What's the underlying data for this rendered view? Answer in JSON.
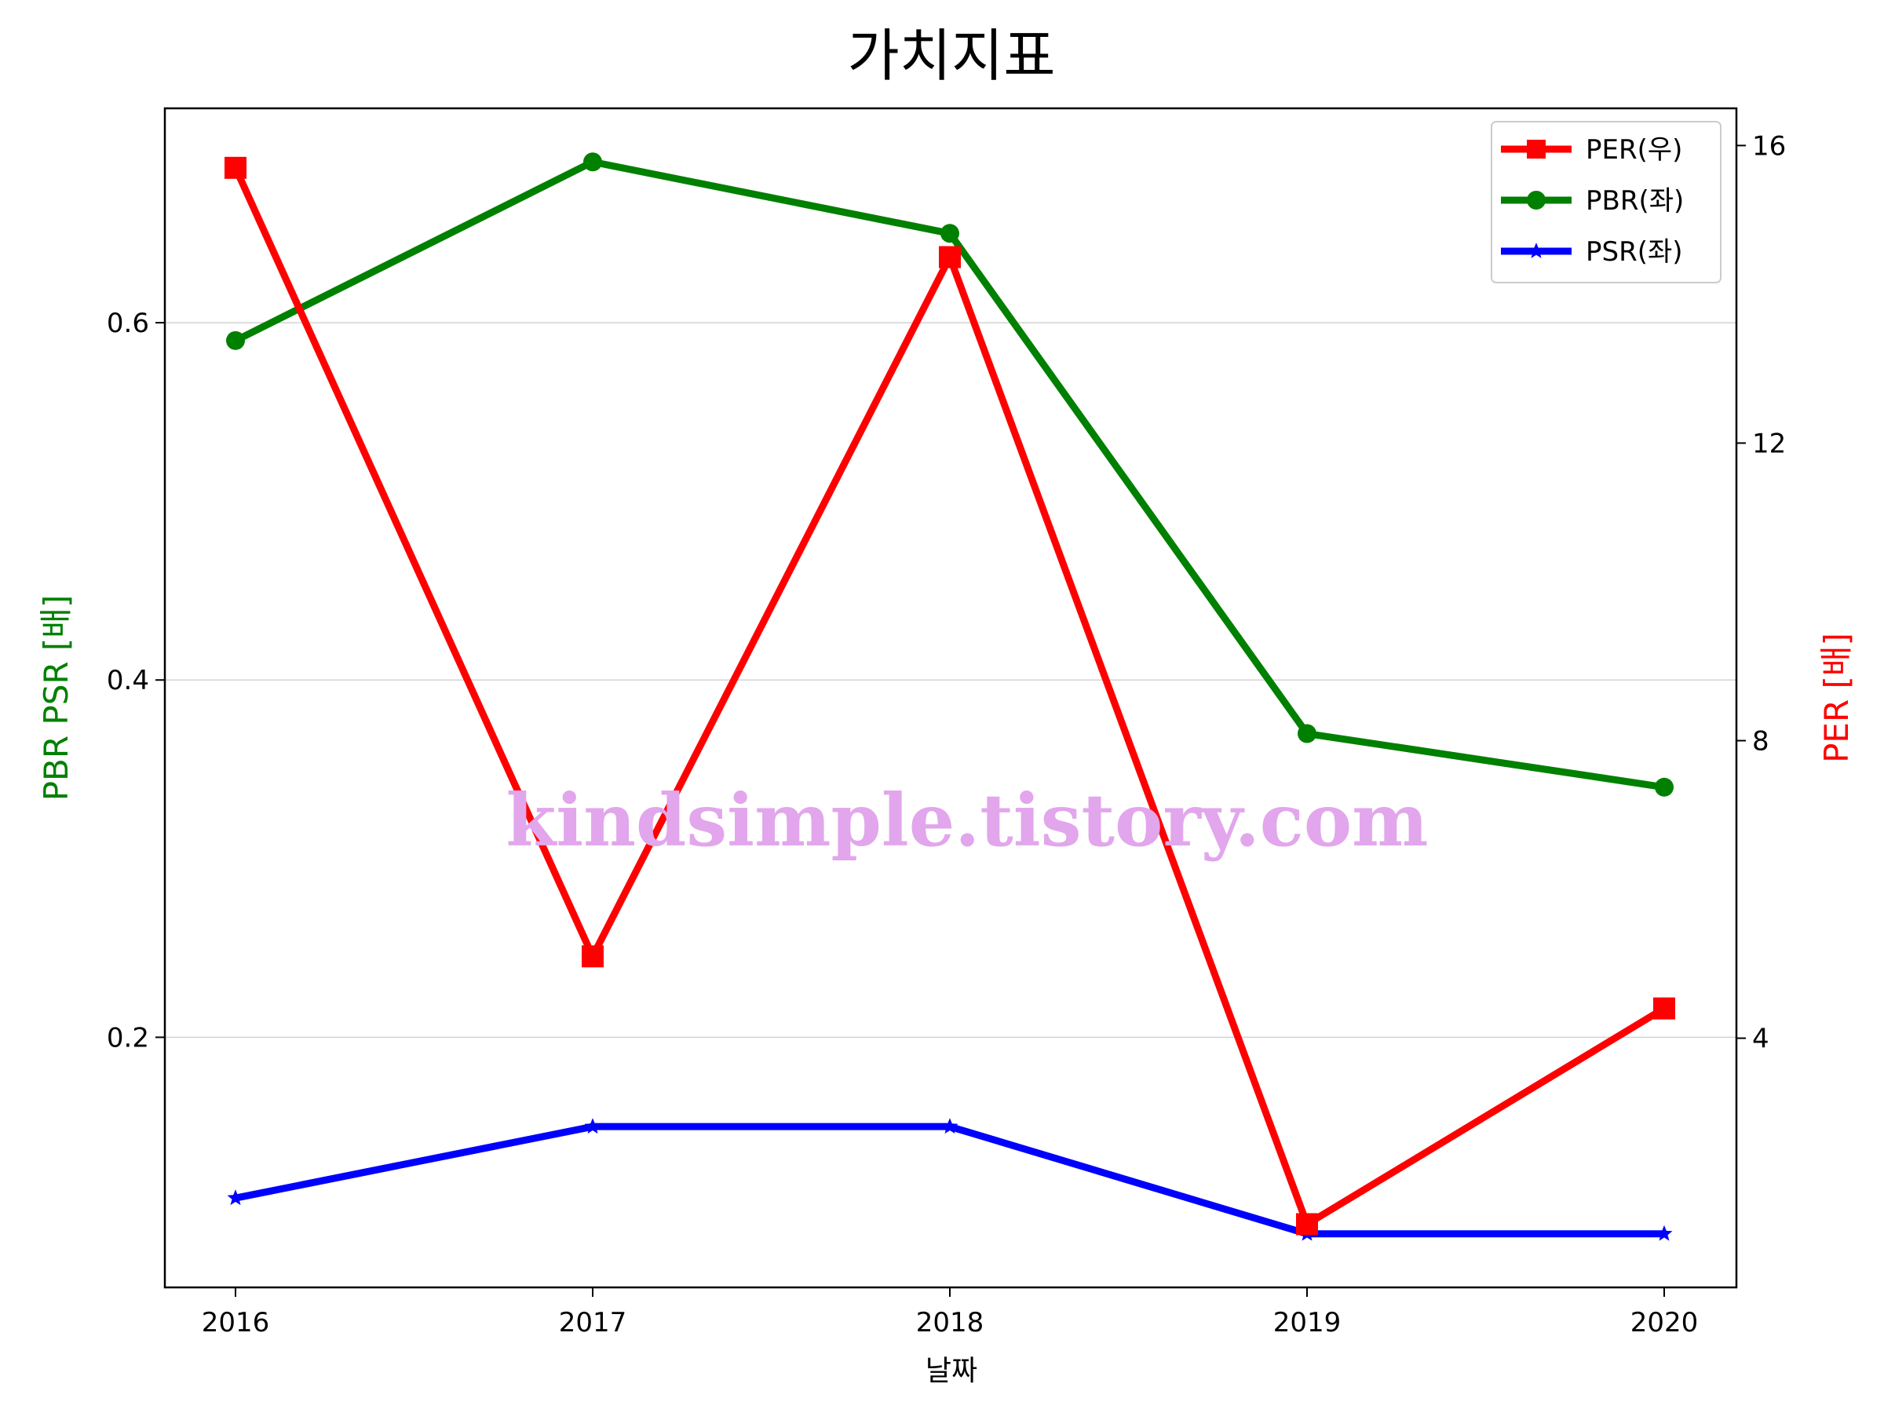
{
  "chart_data": {
    "type": "line",
    "title": "가치지표",
    "xlabel": "날짜",
    "ylabel_left": "PBR PSR [배]",
    "ylabel_right": "PER [배]",
    "categories": [
      "2016",
      "2017",
      "2018",
      "2019",
      "2020"
    ],
    "ylim_left": [
      0.06,
      0.72
    ],
    "yticks_left": [
      "0.2",
      "0.4",
      "0.6"
    ],
    "ylim_right": [
      0.65,
      16.5
    ],
    "yticks_right": [
      "4",
      "8",
      "12",
      "16"
    ],
    "grid": "horizontal (left axis)",
    "legend_position": "top-right",
    "series": [
      {
        "name": "PER(우)",
        "axis": "right",
        "color": "#ff0000",
        "marker": "square",
        "values": [
          15.7,
          5.1,
          14.5,
          1.5,
          4.4
        ]
      },
      {
        "name": "PBR(좌)",
        "axis": "left",
        "color": "#008000",
        "marker": "circle",
        "values": [
          0.59,
          0.69,
          0.65,
          0.37,
          0.34
        ]
      },
      {
        "name": "PSR(좌)",
        "axis": "left",
        "color": "#0000ff",
        "marker": "star",
        "values": [
          0.11,
          0.15,
          0.15,
          0.09,
          0.09
        ]
      }
    ],
    "left_axis_color": "#008000",
    "right_axis_color": "#ff0000"
  },
  "watermark": "kindsimple.tistory.com"
}
